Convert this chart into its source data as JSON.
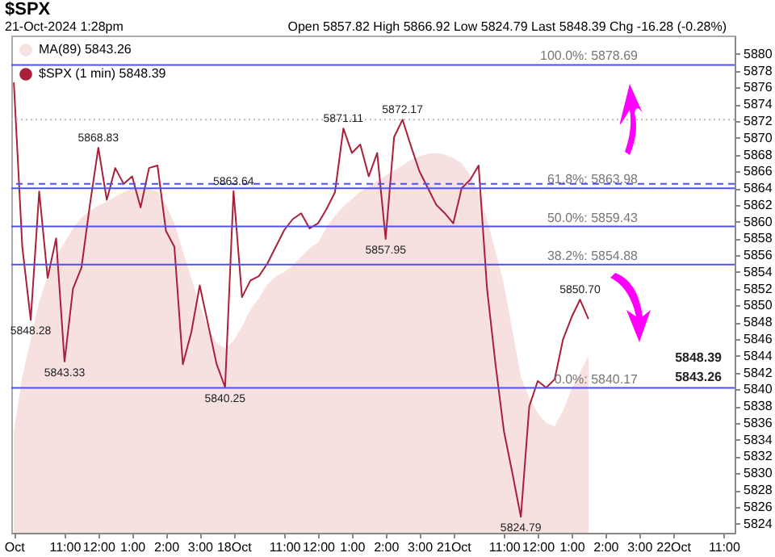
{
  "chart_data": {
    "type": "line",
    "title": "$SPX",
    "subtitle": "21-Oct-2024 1:28pm",
    "annotations": [
      "Open 5857.82 High 5866.92 Low 5824.79 Last 5848.39 Chg -16.28 (-0.28%)",
      "5848.39",
      "5843.26",
      {
        "text": "5868.83",
        "y": 5868.83
      },
      {
        "text": "5848.28",
        "y": 5848.28
      },
      {
        "text": "5843.33",
        "y": 5843.33
      },
      {
        "text": "5840.25",
        "y": 5840.25
      },
      {
        "text": "5863.64",
        "y": 5863.64
      },
      {
        "text": "5871.11",
        "y": 5871.11
      },
      {
        "text": "5857.95",
        "y": 5857.95
      },
      {
        "text": "5872.17",
        "y": 5872.17
      },
      {
        "text": "5824.79",
        "y": 5824.79
      },
      {
        "text": "5850.70",
        "y": 5850.7
      }
    ],
    "categories": [
      "Oct",
      null,
      null,
      null,
      null,
      null,
      "11:00",
      null,
      null,
      null,
      "12:00",
      null,
      null,
      null,
      "1:00",
      null,
      null,
      null,
      "2:00",
      null,
      null,
      null,
      "3:00",
      null,
      null,
      null,
      "18Oct",
      null,
      null,
      null,
      null,
      null,
      "11:00",
      null,
      null,
      null,
      "12:00",
      null,
      null,
      null,
      "1:00",
      null,
      null,
      null,
      "2:00",
      null,
      null,
      null,
      "3:00",
      null,
      null,
      null,
      "21Oct",
      null,
      null,
      null,
      null,
      null,
      "11:00",
      null,
      null,
      null,
      "12:00",
      null,
      null,
      null,
      "1:00",
      null,
      null,
      null,
      "2:00",
      null,
      null,
      null,
      "3:00",
      null,
      null,
      null,
      "22Oct",
      null,
      null,
      null,
      null,
      null,
      "11:00",
      null
    ],
    "series": [
      {
        "name": "MA(89) 5843.26",
        "type": "area",
        "color": "#f6e0e0",
        "values": [
          5835.0,
          5841.5,
          5846.0,
          5850.5,
          5853.5,
          5856.0,
          5857.5,
          5859.2,
          5860.5,
          5861.3,
          5861.9,
          5862.4,
          5863.0,
          5863.5,
          5864.0,
          5864.0,
          5863.9,
          5863.6,
          5862.0,
          5859.8,
          5856.5,
          5853.3,
          5850.0,
          5847.3,
          5845.5,
          5844.9,
          5845.8,
          5847.5,
          5849.5,
          5850.9,
          5852.5,
          5853.5,
          5854.0,
          5854.8,
          5855.8,
          5856.8,
          5857.5,
          5859.3,
          5860.7,
          5861.8,
          5862.7,
          5863.6,
          5864.2,
          5864.9,
          5865.5,
          5866.1,
          5866.7,
          5867.4,
          5867.8,
          5868.1,
          5868.2,
          5868.0,
          5867.6,
          5867.0,
          5865.5,
          5863.5,
          5860.3,
          5856.5,
          5852.5,
          5847.0,
          5841.5,
          5839.0,
          5837.2,
          5836.0,
          5835.6,
          5837.5,
          5840.0,
          5842.0,
          5844.0,
          null,
          null,
          null,
          null,
          null,
          null,
          null,
          null,
          null,
          null,
          null,
          null,
          null,
          null,
          null,
          null,
          null
        ]
      },
      {
        "name": "$SPX (1 min) 5848.39",
        "type": "line",
        "color": "#a8203a",
        "values": [
          5876.6,
          5857.0,
          5848.28,
          5863.6,
          5853.3,
          5858.0,
          5843.33,
          5852.0,
          5854.5,
          5862.0,
          5868.83,
          5862.6,
          5866.4,
          5864.5,
          5865.4,
          5861.7,
          5866.4,
          5866.7,
          5858.9,
          5857.0,
          5843.0,
          5846.8,
          5852.4,
          5847.7,
          5843.0,
          5840.25,
          5863.64,
          5851.0,
          5853.0,
          5853.5,
          5855.0,
          5857.0,
          5859.0,
          5860.3,
          5861.0,
          5859.2,
          5859.8,
          5861.5,
          5863.5,
          5871.11,
          5868.2,
          5869.2,
          5865.4,
          5868.2,
          5857.95,
          5870.1,
          5872.17,
          5869.0,
          5866.0,
          5864.0,
          5862.0,
          5861.0,
          5859.8,
          5864.0,
          5865.0,
          5866.7,
          5852.0,
          5843.0,
          5835.0,
          5830.0,
          5824.79,
          5838.0,
          5841.0,
          5840.2,
          5841.2,
          5846.0,
          5848.6,
          5850.7,
          5848.4,
          null,
          null,
          null,
          null,
          null,
          null,
          null,
          null,
          null,
          null,
          null,
          null,
          null,
          null,
          null,
          null,
          null
        ]
      }
    ],
    "ylim": [
      5822.9,
      5882.2
    ],
    "yticks": [
      5824,
      5826,
      5828,
      5830,
      5832,
      5834,
      5836,
      5838,
      5840,
      5842,
      5844,
      5846,
      5848,
      5850,
      5852,
      5854,
      5856,
      5858,
      5860,
      5862,
      5864,
      5866,
      5868,
      5870,
      5872,
      5874,
      5876,
      5878,
      5880
    ],
    "ref_lines": [
      {
        "axis": "y",
        "value": 5878.69,
        "label": "100.0%: 5878.69",
        "color": "#5050f0",
        "line_style": "solid"
      },
      {
        "axis": "y",
        "value": 5863.98,
        "label": "61.8%: 5863.98",
        "color": "#5050f0",
        "line_style": "solid"
      },
      {
        "axis": "y",
        "value": 5859.43,
        "label": "50.0%: 5859.43",
        "color": "#5050f0",
        "line_style": "solid"
      },
      {
        "axis": "y",
        "value": 5854.88,
        "label": "38.2%: 5854.88",
        "color": "#5050f0",
        "line_style": "solid"
      },
      {
        "axis": "y",
        "value": 5840.17,
        "label": "0.0%: 5840.17",
        "color": "#5050f0",
        "line_style": "solid"
      },
      {
        "axis": "y",
        "value": 5864.5,
        "color": "#5050f0",
        "line_style": "dashed"
      },
      {
        "axis": "y",
        "value": 5872.17,
        "color": "#bbbbbb",
        "line_style": "dotted"
      }
    ],
    "legend": "top left"
  }
}
